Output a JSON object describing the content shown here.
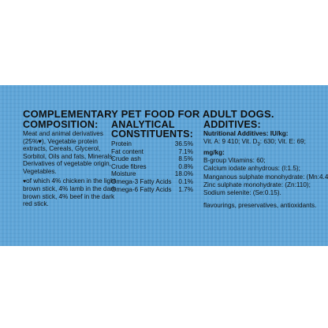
{
  "headline": "COMPLEMENTARY PET FOOD FOR ADULT DOGS.",
  "composition": {
    "heading": "COMPOSITION:",
    "text": "Meat and animal derivatives (25%♥), Vegetable protein extracts, Cereals, Glycerol, Sorbitol, Oils and fats, Minerals, Derivatives of vegetable origin, Vegetables.",
    "note_symbol": "♥",
    "note": "of which 4% chicken in the light brown stick, 4% lamb in the dark brown stick, 4% beef in the dark red stick."
  },
  "analytical": {
    "heading_line1": "ANALYTICAL",
    "heading_line2": "CONSTITUENTS:",
    "rows": [
      {
        "name": "Protein",
        "value": "36.5%"
      },
      {
        "name": "Fat content",
        "value": "7.1%"
      },
      {
        "name": "Crude ash",
        "value": "8.5%"
      },
      {
        "name": "Crude fibres",
        "value": "0.8%"
      },
      {
        "name": "Moisture",
        "value": "18.0%"
      },
      {
        "name": "Omega-3 Fatty Acids",
        "value": "0.1%"
      },
      {
        "name": "Omega-6 Fatty Acids",
        "value": "1.7%"
      }
    ]
  },
  "additives": {
    "heading": "ADDITIVES:",
    "nutritional_title": "Nutritional Additives: IU/kg:",
    "vitamins_prefix": "Vit. A: 9 410; Vit. D",
    "vitamins_sub": "3",
    "vitamins_suffix": ": 630; Vit. E: 69;",
    "mgkg": "mg/kg:",
    "lines": [
      "B-group Vitamins: 60;",
      "Calcium iodate anhydrous: (I:1.5);",
      "Manganous sulphate monohydrate: (Mn:4.4);",
      "Zinc sulphate monohydrate: (Zn:110);",
      "Sodium selenite: (Se:0.15)."
    ],
    "footer": "flavourings, preservatives, antioxidants."
  }
}
